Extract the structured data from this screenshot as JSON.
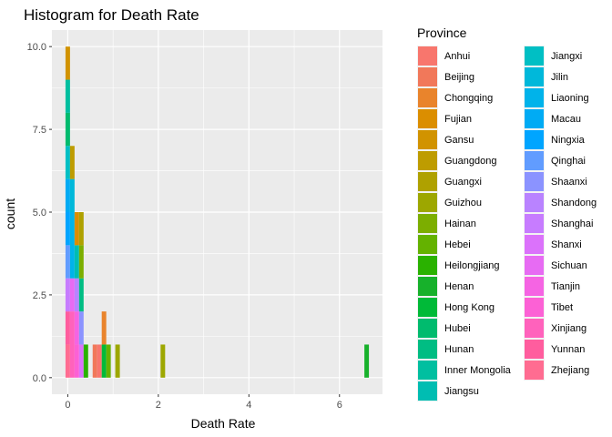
{
  "chart_data": {
    "type": "bar",
    "subtype": "stacked-histogram",
    "title": "Histogram for Death Rate",
    "xlabel": "Death Rate",
    "ylabel": "count",
    "xlim": [
      -0.35,
      6.95
    ],
    "ylim": [
      -0.5,
      10.5
    ],
    "xticks": [
      0,
      2,
      4,
      6
    ],
    "xtick_labels": [
      "0",
      "2",
      "4",
      "6"
    ],
    "xminor": [
      1,
      3,
      5
    ],
    "yticks": [
      0,
      2.5,
      5,
      7.5,
      10
    ],
    "ytick_labels": [
      "0.0",
      "2.5",
      "5.0",
      "7.5",
      "10.0"
    ],
    "yminor": [
      1.25,
      3.75,
      6.25,
      8.75
    ],
    "grid": true,
    "bin_width": 0.1,
    "legend": {
      "title": "Province",
      "placement": "right",
      "columns": 2,
      "entries": [
        {
          "name": "Anhui",
          "color": "#F8766D"
        },
        {
          "name": "Beijing",
          "color": "#F1785A"
        },
        {
          "name": "Chongqing",
          "color": "#E9842C"
        },
        {
          "name": "Fujian",
          "color": "#DB8E00"
        },
        {
          "name": "Gansu",
          "color": "#D19300"
        },
        {
          "name": "Guangdong",
          "color": "#BE9C00"
        },
        {
          "name": "Guangxi",
          "color": "#AFA100"
        },
        {
          "name": "Guizhou",
          "color": "#9DA700"
        },
        {
          "name": "Hainan",
          "color": "#7CAE00"
        },
        {
          "name": "Hebei",
          "color": "#64B200"
        },
        {
          "name": "Heilongjiang",
          "color": "#2AB200"
        },
        {
          "name": "Henan",
          "color": "#17B12B"
        },
        {
          "name": "Hong Kong",
          "color": "#00BA38"
        },
        {
          "name": "Hubei",
          "color": "#00BB6E"
        },
        {
          "name": "Hunan",
          "color": "#00BD83"
        },
        {
          "name": "Inner Mongolia",
          "color": "#00BFA0"
        },
        {
          "name": "Jiangsu",
          "color": "#00BDB2"
        },
        {
          "name": "Jiangxi",
          "color": "#00BFC4"
        },
        {
          "name": "Jilin",
          "color": "#00B8DA"
        },
        {
          "name": "Liaoning",
          "color": "#00B3EA"
        },
        {
          "name": "Macau",
          "color": "#00ABF4"
        },
        {
          "name": "Ningxia",
          "color": "#00A5FF"
        },
        {
          "name": "Qinghai",
          "color": "#619CFF"
        },
        {
          "name": "Shaanxi",
          "color": "#8B93FF"
        },
        {
          "name": "Shandong",
          "color": "#B983FF"
        },
        {
          "name": "Shanghai",
          "color": "#C77CFF"
        },
        {
          "name": "Shanxi",
          "color": "#DB72FB"
        },
        {
          "name": "Sichuan",
          "color": "#E76BF3"
        },
        {
          "name": "Tianjin",
          "color": "#F564E3"
        },
        {
          "name": "Tibet",
          "color": "#FC61D5"
        },
        {
          "name": "Xinjiang",
          "color": "#FF62BC"
        },
        {
          "name": "Yunnan",
          "color": "#FF5D9E"
        },
        {
          "name": "Zhejiang",
          "color": "#FF6C91"
        }
      ]
    },
    "bins": [
      {
        "x0": -0.05,
        "x1": 0.05,
        "stack": [
          {
            "series": "Zhejiang",
            "count": 1
          },
          {
            "series": "Yunnan",
            "count": 1
          },
          {
            "series": "Shanghai",
            "count": 1
          },
          {
            "series": "Qinghai",
            "count": 1
          },
          {
            "series": "Ningxia",
            "count": 1
          },
          {
            "series": "Macau",
            "count": 1
          },
          {
            "series": "Jiangxi",
            "count": 1
          },
          {
            "series": "Hubei",
            "count": 1
          },
          {
            "series": "Inner Mongolia",
            "count": 1
          },
          {
            "series": "Gansu",
            "count": 1
          }
        ]
      },
      {
        "x0": 0.05,
        "x1": 0.15,
        "stack": [
          {
            "series": "Xinjiang",
            "count": 2
          },
          {
            "series": "Sichuan",
            "count": 1
          },
          {
            "series": "Liaoning",
            "count": 2
          },
          {
            "series": "Jilin",
            "count": 1
          },
          {
            "series": "Guangdong",
            "count": 1
          }
        ]
      },
      {
        "x0": 0.15,
        "x1": 0.25,
        "stack": [
          {
            "series": "Tibet",
            "count": 1
          },
          {
            "series": "Tianjin",
            "count": 1
          },
          {
            "series": "Shandong",
            "count": 1
          },
          {
            "series": "Jiangsu",
            "count": 1
          },
          {
            "series": "Fujian",
            "count": 1
          }
        ]
      },
      {
        "x0": 0.25,
        "x1": 0.35,
        "stack": [
          {
            "series": "Shanxi",
            "count": 1
          },
          {
            "series": "Shaanxi",
            "count": 1
          },
          {
            "series": "Hunan",
            "count": 1
          },
          {
            "series": "Hainan",
            "count": 1
          },
          {
            "series": "Guangxi",
            "count": 1
          }
        ]
      },
      {
        "x0": 0.35,
        "x1": 0.45,
        "stack": [
          {
            "series": "Heilongjiang",
            "count": 1
          }
        ]
      },
      {
        "x0": 0.55,
        "x1": 0.65,
        "stack": [
          {
            "series": "Beijing",
            "count": 1
          }
        ]
      },
      {
        "x0": 0.65,
        "x1": 0.75,
        "stack": [
          {
            "series": "Anhui",
            "count": 1
          }
        ]
      },
      {
        "x0": 0.75,
        "x1": 0.85,
        "stack": [
          {
            "series": "Hong Kong",
            "count": 1
          },
          {
            "series": "Chongqing",
            "count": 1
          }
        ]
      },
      {
        "x0": 0.85,
        "x1": 0.95,
        "stack": [
          {
            "series": "Hebei",
            "count": 1
          }
        ]
      },
      {
        "x0": 1.05,
        "x1": 1.15,
        "stack": [
          {
            "series": "Guizhou",
            "count": 1
          }
        ]
      },
      {
        "x0": 2.05,
        "x1": 2.15,
        "stack": [
          {
            "series": "Guizhou",
            "count": 1
          }
        ]
      },
      {
        "x0": 6.55,
        "x1": 6.65,
        "stack": [
          {
            "series": "Henan",
            "count": 1
          }
        ]
      }
    ]
  }
}
